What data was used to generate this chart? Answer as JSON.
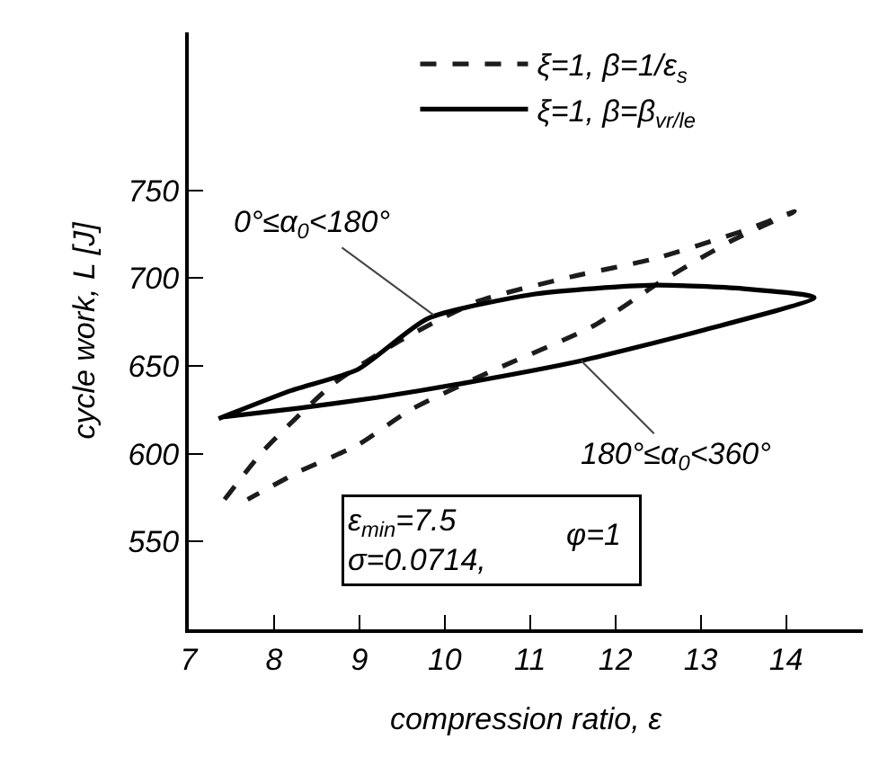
{
  "chart_data": {
    "type": "line",
    "xlabel": "compression ratio, ε",
    "ylabel": "cycle work, L [J]",
    "xlim": [
      7,
      14.9
    ],
    "xticks": [
      7,
      8,
      9,
      10,
      11,
      12,
      13,
      14
    ],
    "ylim": [
      500,
      840
    ],
    "yticks": [
      550,
      600,
      650,
      700,
      750
    ],
    "grid": false,
    "legend": "top",
    "marker": "none",
    "series": [
      {
        "name": "ξ=1, β=1/ε$_{s}$",
        "color": "#1c1c1c",
        "line_style": "dashed",
        "x": [
          7.42,
          7.88,
          8.7,
          9.5,
          10.4,
          11.5,
          12.45,
          13.5,
          14.1,
          13.35,
          12.5,
          11.75,
          10.5,
          9.6,
          8.98,
          8.3,
          7.69
        ],
        "values": [
          574,
          602,
          640,
          665,
          687,
          701,
          711,
          727,
          738,
          721,
          697,
          673,
          646,
          625,
          605,
          590,
          574
        ]
      },
      {
        "name": "ξ=1, β=β$_{vr/le}$",
        "color": "#000000",
        "line_style": "solid",
        "x": [
          7.35,
          8.2,
          8.98,
          9.8,
          11.06,
          12.45,
          13.5,
          14.33,
          13,
          11.6,
          10.2,
          9.2,
          8.3,
          7.42
        ],
        "values": [
          620,
          636,
          648,
          677,
          691,
          696,
          694,
          689,
          670,
          653,
          640,
          632,
          626,
          621
        ]
      }
    ],
    "annotations": [
      {
        "text": "0°≤α$_{0}$<180°",
        "x": 9.87,
        "y": 679
      },
      {
        "text": "180°≤α$_{0}$<360°",
        "x": 11.6,
        "y": 653
      },
      "ε$_{min}$=7.5",
      "σ=0.0714,",
      "φ=1"
    ]
  }
}
